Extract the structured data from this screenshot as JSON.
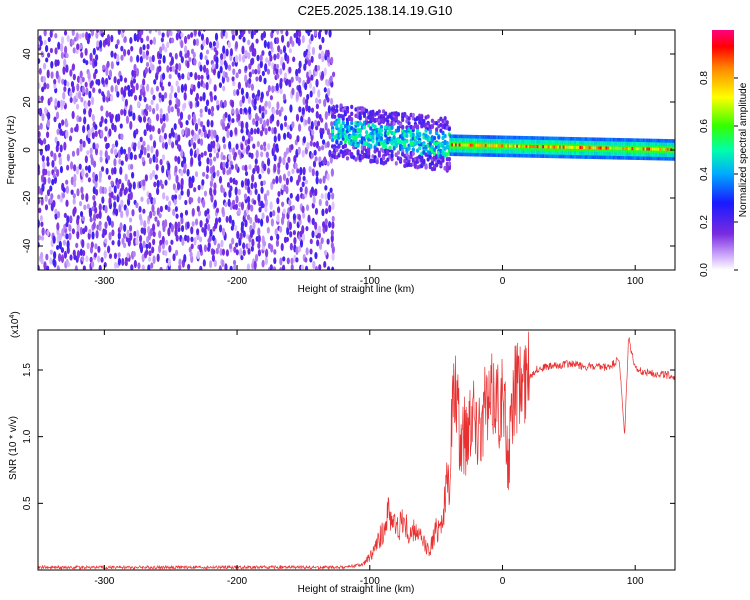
{
  "title": "C2E5.2025.138.14.19.G10",
  "colors": {
    "signal": "#e83030",
    "scatter": "#7a2be0",
    "colormap": [
      "#ffffff",
      "#d6b8ff",
      "#7a2be0",
      "#1a1aff",
      "#00aaff",
      "#00ffaa",
      "#33ff00",
      "#ffff00",
      "#ff8800",
      "#ff0000",
      "#ff0080"
    ]
  },
  "chart_data": [
    {
      "type": "heatmap",
      "xlabel": "Height of straight line (km)",
      "ylabel": "Frequency (Hz)",
      "xlim": [
        -350,
        130
      ],
      "ylim": [
        -50,
        50
      ],
      "xticks": [
        -300,
        -200,
        -100,
        0,
        100
      ],
      "yticks": [
        -40,
        -20,
        0,
        20,
        40
      ],
      "colorbar": {
        "label": "Normalized spectral amplitude",
        "range": [
          0,
          1
        ],
        "ticks": [
          "0.0",
          "0.2",
          "0.4",
          "0.6",
          "0.8"
        ]
      },
      "regions": [
        {
          "x": [
            -350,
            -130
          ],
          "frequency": [
            -50,
            50
          ],
          "amplitude": [
            0.05,
            0.25
          ],
          "description": "noise"
        },
        {
          "x": [
            -130,
            -40
          ],
          "frequency_center": [
            8,
            2
          ],
          "frequency_spread": [
            -12,
            12
          ],
          "amplitude": [
            0.2,
            0.55
          ]
        },
        {
          "x": [
            -40,
            130
          ],
          "frequency_center": [
            2,
            0
          ],
          "amplitude": [
            0.5,
            0.95
          ]
        }
      ]
    },
    {
      "type": "line",
      "xlabel": "Height of straight line (km)",
      "ylabel": "SNR (10 * v/v)",
      "yexponent": "(x10",
      "yexponent_power": "4",
      "xlim": [
        -350,
        130
      ],
      "ylim": [
        0,
        1.8
      ],
      "xticks": [
        -300,
        -200,
        -100,
        0,
        100
      ],
      "yticks": [
        "0.5",
        "1.0",
        "1.5"
      ],
      "series": [
        {
          "x": [
            -350,
            -300,
            -250,
            -200,
            -150,
            -120,
            -105,
            -100,
            -95,
            -90,
            -85,
            -80,
            -75,
            -70,
            -65,
            -60,
            -55,
            -50,
            -45,
            -42,
            -40,
            -38,
            -35,
            -32,
            -30,
            -28,
            -25,
            -22,
            -20,
            -18,
            -15,
            -12,
            -10,
            -8,
            -5,
            -3,
            0,
            3,
            5,
            8,
            10,
            15,
            20,
            25,
            30,
            40,
            50,
            60,
            70,
            80,
            88,
            92,
            95,
            100,
            110,
            120,
            130
          ],
          "y": [
            0.02,
            0.02,
            0.02,
            0.02,
            0.02,
            0.02,
            0.04,
            0.1,
            0.18,
            0.3,
            0.45,
            0.3,
            0.38,
            0.25,
            0.3,
            0.2,
            0.15,
            0.3,
            0.4,
            0.6,
            0.7,
            1.2,
            1.35,
            0.9,
            1.1,
            1.0,
            1.15,
            1.3,
            1.0,
            1.2,
            1.1,
            1.25,
            1.2,
            1.3,
            1.35,
            1.25,
            1.3,
            1.0,
            0.8,
            1.3,
            1.35,
            1.4,
            1.45,
            1.5,
            1.52,
            1.53,
            1.55,
            1.53,
            1.52,
            1.52,
            1.58,
            1.0,
            1.75,
            1.5,
            1.48,
            1.47,
            1.45
          ]
        }
      ]
    }
  ]
}
